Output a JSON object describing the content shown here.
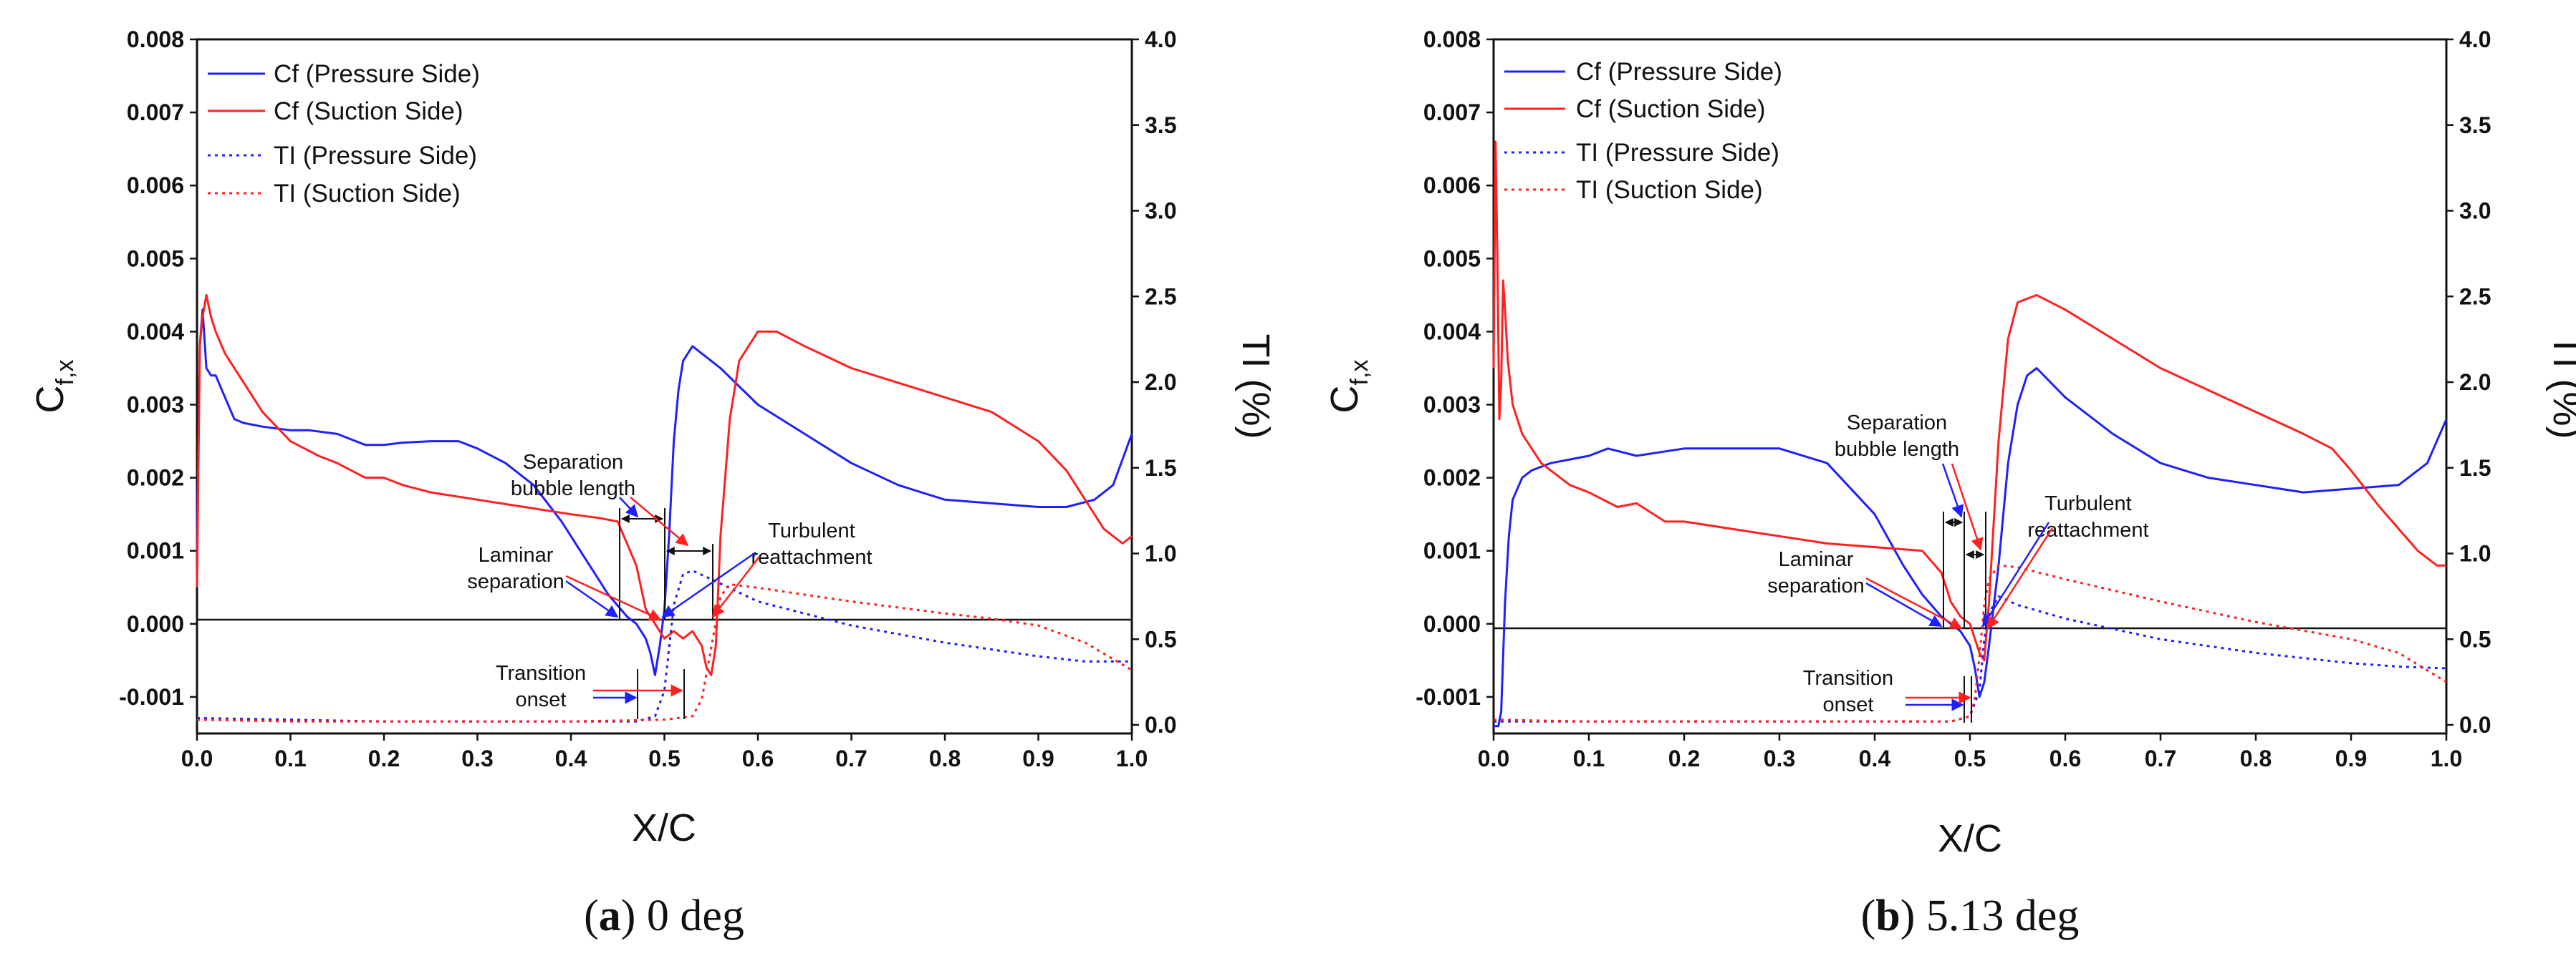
{
  "colors": {
    "pressure": "#1f1fff",
    "suction": "#ff2020",
    "axis": "#111111"
  },
  "chart_data": [
    {
      "type": "line",
      "caption_letter": "a",
      "caption_text": ") 0 deg",
      "xlabel": "X/C",
      "ylabel_main": "C",
      "ylabel_sub": "f,x",
      "ylabel_right": "TI (%)",
      "xlim": [
        0,
        1.0
      ],
      "ylim": [
        -0.0015,
        0.008
      ],
      "y2lim": [
        -0.05,
        4.0
      ],
      "xticks": [
        "0.0",
        "0.1",
        "0.2",
        "0.3",
        "0.4",
        "0.5",
        "0.6",
        "0.7",
        "0.8",
        "0.9",
        "1.0"
      ],
      "yticks": [
        "0.008",
        "0.007",
        "0.006",
        "0.005",
        "0.004",
        "0.003",
        "0.002",
        "0.001",
        "0.000",
        "-0.001"
      ],
      "y2ticks": [
        "4.0",
        "3.5",
        "3.0",
        "2.5",
        "2.0",
        "1.5",
        "1.0",
        "0.5",
        "0.0"
      ],
      "legend": [
        "Cf (Pressure Side)",
        "Cf (Suction Side)",
        "TI (Pressure Side)",
        "TI (Suction Side)"
      ],
      "annotations": {
        "sep_line1": "Separation",
        "sep_line2": "bubble length",
        "lam_line1": "Laminar",
        "lam_line2": "separation",
        "turb_line1": "Turbulent",
        "turb_line2": "reattachment",
        "trans_line1": "Transition",
        "trans_line2": "onset"
      },
      "series": [
        {
          "name": "Cf (Pressure Side)",
          "axis": "left",
          "style": "solid",
          "color": "pressure",
          "x": [
            0,
            0.003,
            0.006,
            0.01,
            0.015,
            0.02,
            0.03,
            0.04,
            0.05,
            0.07,
            0.1,
            0.12,
            0.15,
            0.18,
            0.2,
            0.22,
            0.25,
            0.28,
            0.3,
            0.33,
            0.36,
            0.39,
            0.42,
            0.44,
            0.46,
            0.47,
            0.48,
            0.485,
            0.49,
            0.495,
            0.5,
            0.505,
            0.51,
            0.515,
            0.52,
            0.53,
            0.54,
            0.56,
            0.6,
            0.65,
            0.7,
            0.75,
            0.8,
            0.85,
            0.9,
            0.93,
            0.96,
            0.98,
            1.0
          ],
          "y": [
            0.001,
            0.0038,
            0.0043,
            0.0035,
            0.0034,
            0.0034,
            0.0031,
            0.0028,
            0.00275,
            0.0027,
            0.00265,
            0.00265,
            0.0026,
            0.00245,
            0.00245,
            0.00248,
            0.0025,
            0.0025,
            0.0024,
            0.0022,
            0.0019,
            0.0014,
            0.0008,
            0.0004,
            0.0001,
            0.0,
            -0.0002,
            -0.0004,
            -0.0007,
            -0.0003,
            0.0002,
            0.0012,
            0.0025,
            0.0032,
            0.0036,
            0.0038,
            0.0037,
            0.0035,
            0.003,
            0.0026,
            0.0022,
            0.0019,
            0.0017,
            0.00165,
            0.0016,
            0.0016,
            0.0017,
            0.0019,
            0.0026
          ]
        },
        {
          "name": "Cf (Suction Side)",
          "axis": "left",
          "style": "solid",
          "color": "suction",
          "x": [
            0,
            0.003,
            0.006,
            0.01,
            0.015,
            0.02,
            0.03,
            0.05,
            0.07,
            0.1,
            0.13,
            0.15,
            0.18,
            0.2,
            0.22,
            0.25,
            0.3,
            0.35,
            0.4,
            0.43,
            0.45,
            0.47,
            0.48,
            0.49,
            0.5,
            0.51,
            0.52,
            0.53,
            0.54,
            0.545,
            0.55,
            0.555,
            0.56,
            0.57,
            0.58,
            0.6,
            0.62,
            0.65,
            0.7,
            0.75,
            0.8,
            0.85,
            0.9,
            0.93,
            0.95,
            0.97,
            0.99,
            1.0
          ],
          "y": [
            0.0005,
            0.0038,
            0.0042,
            0.0045,
            0.0042,
            0.004,
            0.0037,
            0.0033,
            0.0029,
            0.0025,
            0.0023,
            0.0022,
            0.002,
            0.002,
            0.0019,
            0.0018,
            0.0017,
            0.0016,
            0.0015,
            0.00145,
            0.0014,
            0.0008,
            0.0002,
            0.0,
            -0.0002,
            -0.0001,
            -0.0002,
            -0.0001,
            -0.0003,
            -0.0006,
            -0.0007,
            -0.0003,
            0.0012,
            0.0028,
            0.0036,
            0.004,
            0.004,
            0.0038,
            0.0035,
            0.0033,
            0.0031,
            0.0029,
            0.0025,
            0.0021,
            0.0017,
            0.0013,
            0.0011,
            0.0012
          ]
        },
        {
          "name": "TI (Pressure Side)",
          "axis": "right",
          "style": "dotted",
          "color": "pressure",
          "x": [
            0,
            0.1,
            0.2,
            0.3,
            0.4,
            0.47,
            0.49,
            0.5,
            0.51,
            0.52,
            0.53,
            0.55,
            0.6,
            0.7,
            0.8,
            0.9,
            0.95,
            1.0
          ],
          "y": [
            0.04,
            0.03,
            0.02,
            0.02,
            0.02,
            0.02,
            0.05,
            0.2,
            0.7,
            0.88,
            0.9,
            0.85,
            0.72,
            0.58,
            0.48,
            0.4,
            0.37,
            0.37
          ]
        },
        {
          "name": "TI (Suction Side)",
          "axis": "right",
          "style": "dotted",
          "color": "suction",
          "x": [
            0,
            0.1,
            0.2,
            0.3,
            0.4,
            0.5,
            0.53,
            0.54,
            0.55,
            0.56,
            0.57,
            0.6,
            0.7,
            0.8,
            0.85,
            0.9,
            0.95,
            1.0
          ],
          "y": [
            0.03,
            0.02,
            0.02,
            0.02,
            0.02,
            0.03,
            0.05,
            0.15,
            0.45,
            0.75,
            0.82,
            0.8,
            0.72,
            0.65,
            0.62,
            0.58,
            0.48,
            0.32
          ]
        }
      ]
    },
    {
      "type": "line",
      "caption_letter": "b",
      "caption_text": ") 5.13 deg",
      "xlabel": "X/C",
      "ylabel_main": "C",
      "ylabel_sub": "f,x",
      "ylabel_right": "TI (%)",
      "xlim": [
        0,
        1.0
      ],
      "ylim": [
        -0.0015,
        0.008
      ],
      "y2lim": [
        -0.05,
        4.0
      ],
      "xticks": [
        "0.0",
        "0.1",
        "0.2",
        "0.3",
        "0.4",
        "0.5",
        "0.6",
        "0.7",
        "0.8",
        "0.9",
        "1.0"
      ],
      "yticks": [
        "0.008",
        "0.007",
        "0.006",
        "0.005",
        "0.004",
        "0.003",
        "0.002",
        "0.001",
        "0.000",
        "-0.001"
      ],
      "y2ticks": [
        "4.0",
        "3.5",
        "3.0",
        "2.5",
        "2.0",
        "1.5",
        "1.0",
        "0.5",
        "0.0"
      ],
      "legend": [
        "Cf (Pressure Side)",
        "Cf (Suction Side)",
        "TI (Pressure Side)",
        "TI (Suction Side)"
      ],
      "annotations": {
        "sep_line1": "Separation",
        "sep_line2": "bubble length",
        "lam_line1": "Laminar",
        "lam_line2": "separation",
        "turb_line1": "Turbulent",
        "turb_line2": "reattachment",
        "trans_line1": "Transition",
        "trans_line2": "onset"
      },
      "series": [
        {
          "name": "Cf (Pressure Side)",
          "axis": "left",
          "style": "solid",
          "color": "pressure",
          "x": [
            0,
            0.005,
            0.008,
            0.012,
            0.016,
            0.02,
            0.03,
            0.04,
            0.06,
            0.08,
            0.1,
            0.12,
            0.15,
            0.2,
            0.25,
            0.3,
            0.35,
            0.4,
            0.43,
            0.45,
            0.47,
            0.49,
            0.5,
            0.505,
            0.51,
            0.515,
            0.52,
            0.53,
            0.54,
            0.55,
            0.56,
            0.57,
            0.6,
            0.65,
            0.7,
            0.75,
            0.8,
            0.85,
            0.9,
            0.95,
            0.98,
            1.0
          ],
          "y": [
            -0.0014,
            -0.0014,
            -0.0012,
            0.0003,
            0.0012,
            0.0017,
            0.002,
            0.0021,
            0.0022,
            0.00225,
            0.0023,
            0.0024,
            0.0023,
            0.0024,
            0.0024,
            0.0024,
            0.0022,
            0.0015,
            0.0008,
            0.0004,
            0.0001,
            -0.0001,
            -0.0003,
            -0.0006,
            -0.001,
            -0.0008,
            -0.0003,
            0.0008,
            0.0022,
            0.003,
            0.0034,
            0.0035,
            0.0031,
            0.0026,
            0.0022,
            0.002,
            0.0019,
            0.0018,
            0.00185,
            0.0019,
            0.0022,
            0.0028
          ]
        },
        {
          "name": "Cf (Suction Side)",
          "axis": "left",
          "style": "solid",
          "color": "suction",
          "x": [
            0,
            0.002,
            0.004,
            0.006,
            0.008,
            0.01,
            0.012,
            0.015,
            0.02,
            0.03,
            0.05,
            0.08,
            0.1,
            0.13,
            0.15,
            0.18,
            0.2,
            0.25,
            0.3,
            0.35,
            0.4,
            0.45,
            0.47,
            0.48,
            0.49,
            0.5,
            0.505,
            0.51,
            0.515,
            0.52,
            0.53,
            0.54,
            0.55,
            0.57,
            0.6,
            0.65,
            0.7,
            0.75,
            0.8,
            0.85,
            0.88,
            0.9,
            0.93,
            0.95,
            0.97,
            0.99,
            1.0
          ],
          "y": [
            0.0035,
            0.0066,
            0.005,
            0.0028,
            0.0033,
            0.0047,
            0.0043,
            0.0036,
            0.003,
            0.0026,
            0.0022,
            0.0019,
            0.0018,
            0.0016,
            0.00165,
            0.0014,
            0.0014,
            0.0013,
            0.0012,
            0.0011,
            0.00105,
            0.001,
            0.0007,
            0.0003,
            0.0001,
            0.0,
            -0.0002,
            -0.0004,
            -0.0005,
            0.0003,
            0.0025,
            0.0039,
            0.0044,
            0.0045,
            0.0043,
            0.0039,
            0.0035,
            0.0032,
            0.0029,
            0.0026,
            0.0024,
            0.0021,
            0.0016,
            0.0013,
            0.001,
            0.0008,
            0.0008
          ]
        },
        {
          "name": "TI (Pressure Side)",
          "axis": "right",
          "style": "dotted",
          "color": "pressure",
          "x": [
            0,
            0.1,
            0.2,
            0.3,
            0.4,
            0.48,
            0.5,
            0.51,
            0.515,
            0.52,
            0.53,
            0.55,
            0.6,
            0.7,
            0.8,
            0.9,
            0.95,
            1.0
          ],
          "y": [
            0.02,
            0.02,
            0.02,
            0.02,
            0.02,
            0.02,
            0.05,
            0.2,
            0.5,
            0.65,
            0.75,
            0.7,
            0.62,
            0.5,
            0.42,
            0.36,
            0.34,
            0.33
          ]
        },
        {
          "name": "TI (Suction Side)",
          "axis": "right",
          "style": "dotted",
          "color": "suction",
          "x": [
            0,
            0.1,
            0.2,
            0.3,
            0.4,
            0.48,
            0.5,
            0.505,
            0.51,
            0.515,
            0.52,
            0.53,
            0.55,
            0.6,
            0.7,
            0.8,
            0.9,
            0.95,
            1.0
          ],
          "y": [
            0.03,
            0.02,
            0.02,
            0.02,
            0.02,
            0.02,
            0.05,
            0.15,
            0.4,
            0.7,
            0.85,
            0.93,
            0.92,
            0.85,
            0.72,
            0.6,
            0.5,
            0.42,
            0.25
          ]
        }
      ]
    }
  ]
}
